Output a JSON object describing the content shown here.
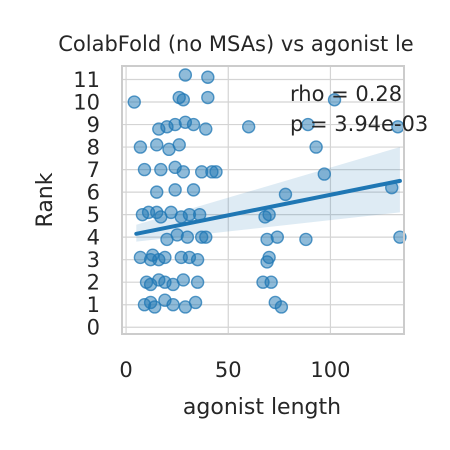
{
  "chart_data": {
    "type": "scatter",
    "title": "ColabFold (no MSAs) vs agonist le",
    "xlabel": "agonist length",
    "ylabel": "Rank",
    "xlim": [
      -2,
      136
    ],
    "ylim": [
      -0.3,
      11.6
    ],
    "x_ticks": [
      0,
      50,
      100
    ],
    "y_ticks": [
      0,
      1,
      2,
      3,
      4,
      5,
      6,
      7,
      8,
      9,
      10,
      11
    ],
    "grid": true,
    "annotations": [
      "rho = 0.28",
      "p = 3.94e-03"
    ],
    "regression": {
      "x": [
        5,
        134
      ],
      "y": [
        4.15,
        6.5
      ],
      "ci_upper": [
        4.55,
        8.0
      ],
      "ci_lower": [
        3.8,
        5.1
      ]
    },
    "points": [
      {
        "x": 29,
        "y": 11.2
      },
      {
        "x": 40,
        "y": 11.1
      },
      {
        "x": 4,
        "y": 10.0
      },
      {
        "x": 28,
        "y": 10.1
      },
      {
        "x": 26,
        "y": 10.2
      },
      {
        "x": 40,
        "y": 10.2
      },
      {
        "x": 102,
        "y": 10.1
      },
      {
        "x": 20,
        "y": 8.9
      },
      {
        "x": 24,
        "y": 9.0
      },
      {
        "x": 16,
        "y": 8.8
      },
      {
        "x": 29,
        "y": 9.1
      },
      {
        "x": 33,
        "y": 9.0
      },
      {
        "x": 39,
        "y": 8.8
      },
      {
        "x": 60,
        "y": 8.9
      },
      {
        "x": 89,
        "y": 9.0
      },
      {
        "x": 133,
        "y": 8.9
      },
      {
        "x": 7,
        "y": 8.0
      },
      {
        "x": 15,
        "y": 8.1
      },
      {
        "x": 21,
        "y": 7.9
      },
      {
        "x": 26,
        "y": 8.1
      },
      {
        "x": 93,
        "y": 8.0
      },
      {
        "x": 9,
        "y": 7.0
      },
      {
        "x": 17,
        "y": 7.0
      },
      {
        "x": 24,
        "y": 7.1
      },
      {
        "x": 28,
        "y": 6.9
      },
      {
        "x": 37,
        "y": 6.9
      },
      {
        "x": 42,
        "y": 6.9
      },
      {
        "x": 44,
        "y": 6.9
      },
      {
        "x": 97,
        "y": 6.8
      },
      {
        "x": 15,
        "y": 6.0
      },
      {
        "x": 24,
        "y": 6.1
      },
      {
        "x": 33,
        "y": 6.1
      },
      {
        "x": 78,
        "y": 5.9
      },
      {
        "x": 130,
        "y": 6.2
      },
      {
        "x": 8,
        "y": 5.0
      },
      {
        "x": 11,
        "y": 5.1
      },
      {
        "x": 15,
        "y": 5.1
      },
      {
        "x": 17,
        "y": 4.9
      },
      {
        "x": 22,
        "y": 5.1
      },
      {
        "x": 27,
        "y": 4.9
      },
      {
        "x": 31,
        "y": 5.0
      },
      {
        "x": 36,
        "y": 5.0
      },
      {
        "x": 68,
        "y": 4.9
      },
      {
        "x": 70,
        "y": 5.0
      },
      {
        "x": 20,
        "y": 3.9
      },
      {
        "x": 25,
        "y": 4.1
      },
      {
        "x": 30,
        "y": 4.0
      },
      {
        "x": 37,
        "y": 4.0
      },
      {
        "x": 39,
        "y": 4.0
      },
      {
        "x": 69,
        "y": 3.9
      },
      {
        "x": 74,
        "y": 4.0
      },
      {
        "x": 88,
        "y": 3.9
      },
      {
        "x": 134,
        "y": 4.0
      },
      {
        "x": 7,
        "y": 3.1
      },
      {
        "x": 13,
        "y": 3.2
      },
      {
        "x": 16,
        "y": 3.0
      },
      {
        "x": 19,
        "y": 3.1
      },
      {
        "x": 12,
        "y": 3.0
      },
      {
        "x": 27,
        "y": 3.1
      },
      {
        "x": 31,
        "y": 3.1
      },
      {
        "x": 35,
        "y": 3.0
      },
      {
        "x": 70,
        "y": 3.1
      },
      {
        "x": 69,
        "y": 2.9
      },
      {
        "x": 10,
        "y": 2.0
      },
      {
        "x": 12,
        "y": 1.9
      },
      {
        "x": 16,
        "y": 2.1
      },
      {
        "x": 19,
        "y": 2.0
      },
      {
        "x": 23,
        "y": 1.9
      },
      {
        "x": 28,
        "y": 2.1
      },
      {
        "x": 35,
        "y": 2.0
      },
      {
        "x": 67,
        "y": 2.0
      },
      {
        "x": 71,
        "y": 2.0
      },
      {
        "x": 9,
        "y": 1.0
      },
      {
        "x": 12,
        "y": 1.1
      },
      {
        "x": 14,
        "y": 0.9
      },
      {
        "x": 19,
        "y": 1.2
      },
      {
        "x": 23,
        "y": 1.0
      },
      {
        "x": 29,
        "y": 0.9
      },
      {
        "x": 34,
        "y": 1.1
      },
      {
        "x": 73,
        "y": 1.1
      },
      {
        "x": 76,
        "y": 0.9
      }
    ]
  }
}
